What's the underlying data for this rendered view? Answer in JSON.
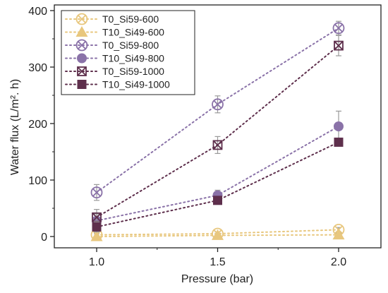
{
  "chart_data": {
    "type": "scatter",
    "xlabel": "Pressure (bar)",
    "ylabel": "Water flux (L/m². h)",
    "xlim": [
      0.825,
      2.175
    ],
    "ylim": [
      -20,
      410
    ],
    "x": [
      1.0,
      1.5,
      2.0
    ],
    "x_tick_labels": [
      "1.0",
      "1.5",
      "2.0"
    ],
    "y_ticks": [
      0,
      100,
      200,
      300,
      400
    ],
    "y_tick_labels": [
      "0",
      "100",
      "200",
      "300",
      "400"
    ],
    "line_style": "dotted",
    "legend_position": "top-left",
    "series": [
      {
        "name": "T0_Si59-600",
        "values": [
          3,
          5,
          12
        ],
        "errors": [
          2,
          3,
          4
        ],
        "marker": "x-circle-open",
        "color": "#e8c77e"
      },
      {
        "name": "T10_Si49-600",
        "values": [
          0,
          2,
          3
        ],
        "errors": [
          1,
          2,
          3
        ],
        "marker": "triangle-filled",
        "color": "#e8c77e"
      },
      {
        "name": "T0_Si59-800",
        "values": [
          78,
          234,
          369
        ],
        "errors": [
          14,
          15,
          12
        ],
        "marker": "x-circle-open",
        "color": "#8a72a8"
      },
      {
        "name": "T10_Si49-800",
        "values": [
          28,
          73,
          195
        ],
        "errors": [
          12,
          9,
          27
        ],
        "marker": "circle-filled",
        "color": "#8a72a8"
      },
      {
        "name": "T0_Si59-1000",
        "values": [
          34,
          162,
          338
        ],
        "errors": [
          14,
          15,
          18
        ],
        "marker": "x-square-open",
        "color": "#5e2f4c"
      },
      {
        "name": "T10_Si49-1000",
        "values": [
          17,
          64,
          167
        ],
        "errors": [
          9,
          6,
          5
        ],
        "marker": "square-filled",
        "color": "#5e2f4c"
      }
    ]
  }
}
